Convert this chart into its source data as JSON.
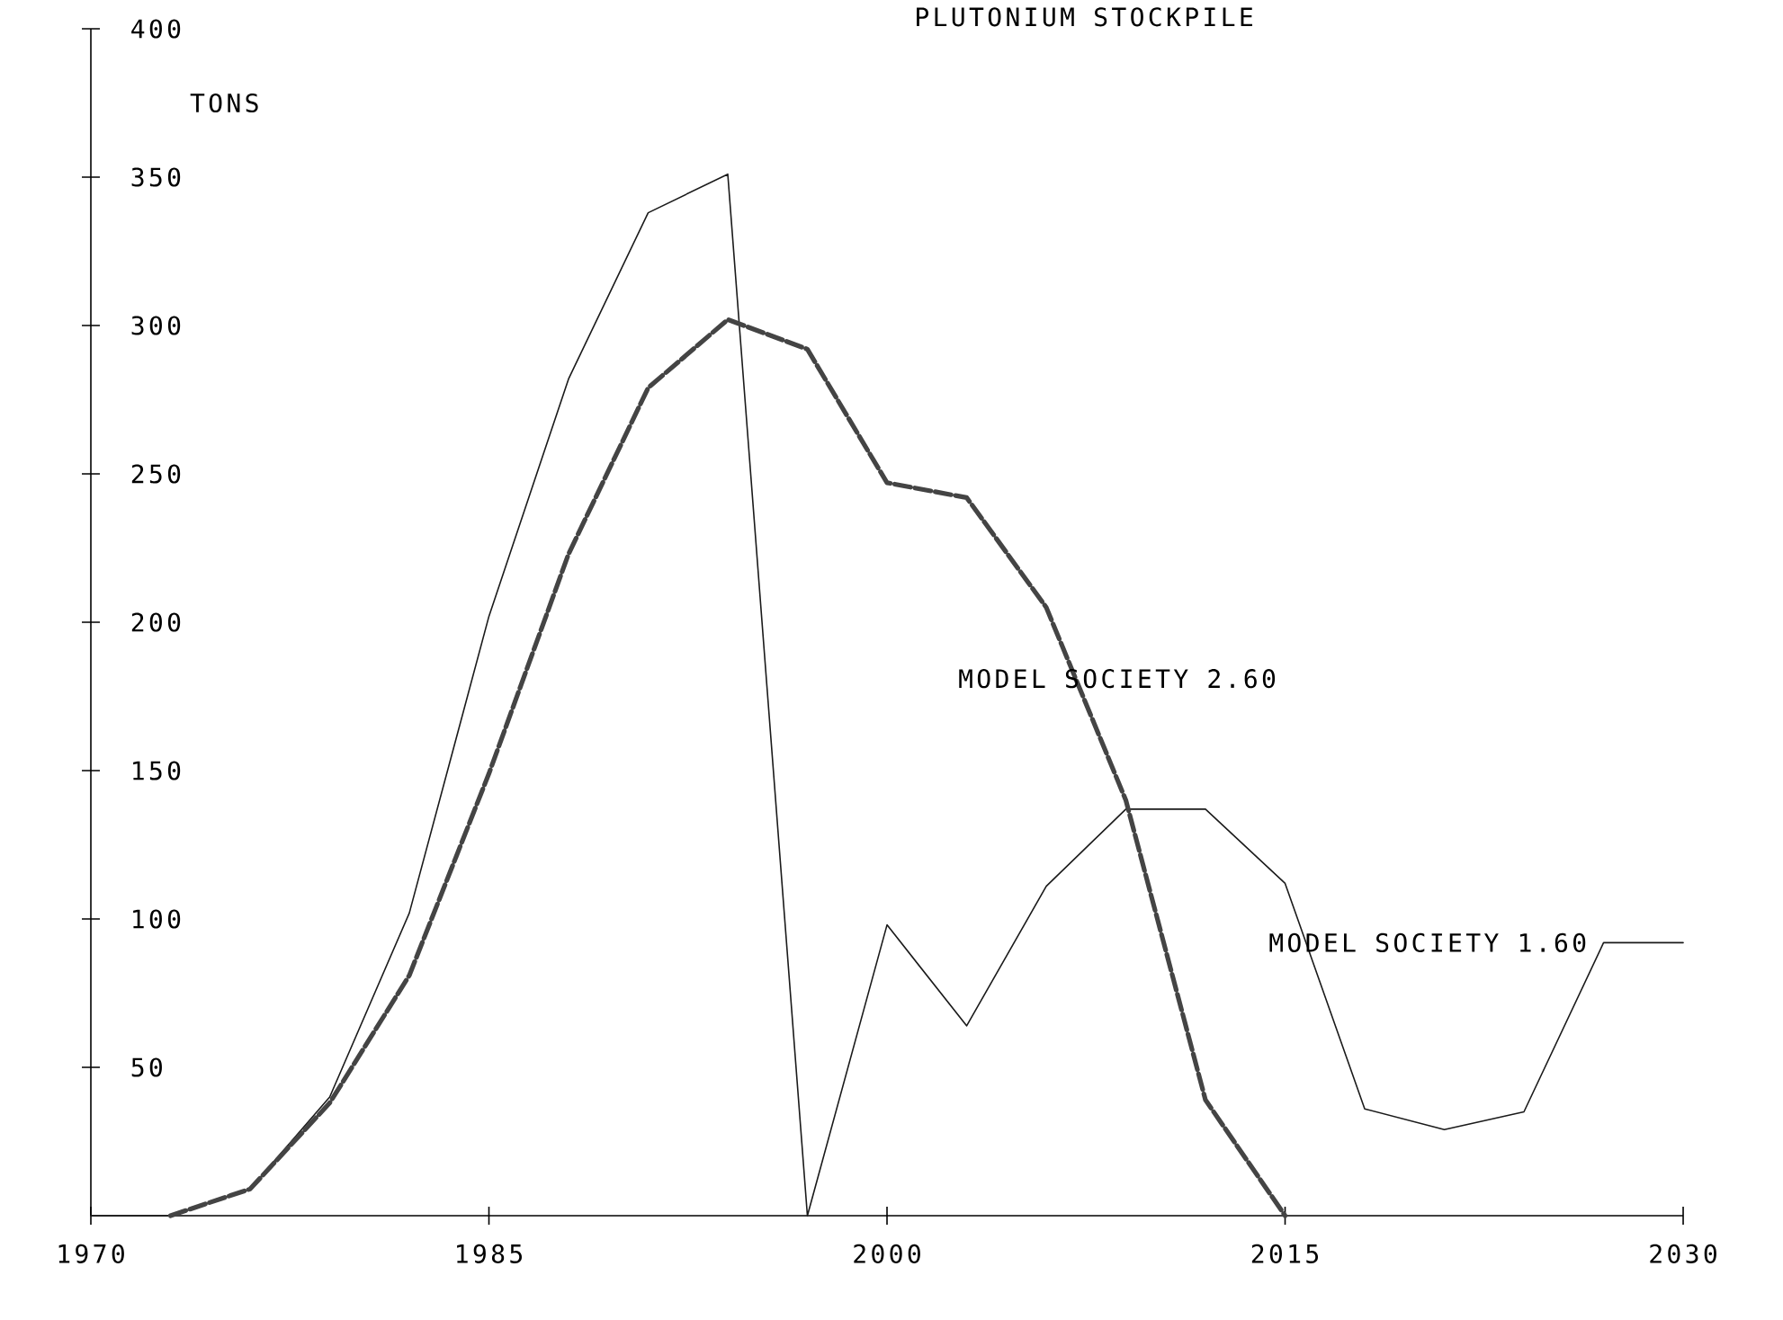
{
  "chart_data": {
    "type": "line",
    "title": "PLUTONIUM STOCKPILE",
    "ylabel": "TONS",
    "x": [
      1970,
      1973,
      1976,
      1979,
      1982,
      1985,
      1988,
      1991,
      1994,
      1997,
      2000,
      2003,
      2006,
      2009,
      2012,
      2015,
      2018,
      2021,
      2024,
      2027,
      2030
    ],
    "series": [
      {
        "name": "MODEL SOCIETY 1.60",
        "color": "#1a1a1a",
        "line_style": "solid",
        "values": [
          0,
          0,
          9,
          40,
          102,
          202,
          282,
          338,
          351,
          0,
          98,
          64,
          111,
          137,
          137,
          112,
          36,
          29,
          35,
          92,
          92
        ]
      },
      {
        "name": "MODEL SOCIETY 2.60",
        "color": "#444444",
        "line_style": "dashed",
        "x": [
          1973,
          1976,
          1979,
          1982,
          1985,
          1988,
          1991,
          1994,
          1997,
          2000,
          2003,
          2006,
          2009,
          2012,
          2015
        ],
        "values": [
          0,
          9,
          38,
          81,
          149,
          223,
          279,
          302,
          292,
          247,
          242,
          205,
          140,
          39,
          0
        ]
      }
    ],
    "xlim": [
      1970,
      2030
    ],
    "ylim": [
      0,
      400
    ],
    "xticks": [
      1970,
      1985,
      2000,
      2015,
      2030
    ],
    "yticks": [
      50,
      100,
      150,
      200,
      250,
      300,
      350,
      400
    ],
    "grid": false,
    "legend": false,
    "marker": "none"
  }
}
